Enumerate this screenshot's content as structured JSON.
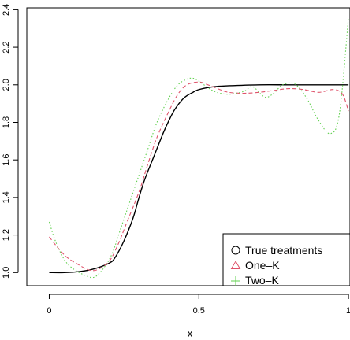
{
  "chart_data": {
    "type": "line",
    "title": "",
    "xlabel": "x",
    "ylabel": "",
    "xlim": [
      -0.075,
      1.005
    ],
    "ylim": [
      0.93,
      2.41
    ],
    "xticks": [
      0,
      0.5,
      1
    ],
    "xtick_labels": [
      "0",
      "0.5",
      "1"
    ],
    "yticks": [
      1.0,
      1.2,
      1.4,
      1.6,
      1.8,
      2.0,
      2.2,
      2.4
    ],
    "ytick_labels": [
      "1.0",
      "1.2",
      "1.4",
      "1.6",
      "1.8",
      "2.0",
      "2.2",
      "2.4"
    ],
    "grid": false,
    "legend_position": "bottom-right",
    "series": [
      {
        "name": "True treatments",
        "color": "#000000",
        "dash": "solid",
        "marker": "circle",
        "x": [
          0,
          0.05,
          0.1,
          0.15,
          0.2,
          0.22,
          0.25,
          0.28,
          0.3,
          0.32,
          0.35,
          0.38,
          0.4,
          0.42,
          0.45,
          0.48,
          0.5,
          0.55,
          0.6,
          0.7,
          0.8,
          0.9,
          1.0
        ],
        "y": [
          1.0,
          1.0,
          1.005,
          1.02,
          1.05,
          1.08,
          1.17,
          1.29,
          1.4,
          1.5,
          1.62,
          1.74,
          1.81,
          1.87,
          1.93,
          1.96,
          1.975,
          1.99,
          1.995,
          2.0,
          2.0,
          2.0,
          2.0
        ]
      },
      {
        "name": "One–K",
        "color": "#df536b",
        "dash": "dashed",
        "marker": "triangle",
        "x": [
          0,
          0.03,
          0.06,
          0.1,
          0.13,
          0.16,
          0.2,
          0.23,
          0.26,
          0.3,
          0.33,
          0.36,
          0.4,
          0.43,
          0.46,
          0.5,
          0.53,
          0.57,
          0.6,
          0.65,
          0.7,
          0.75,
          0.8,
          0.85,
          0.9,
          0.95,
          0.98,
          1.0
        ],
        "y": [
          1.19,
          1.13,
          1.08,
          1.04,
          1.015,
          1.015,
          1.06,
          1.15,
          1.27,
          1.43,
          1.58,
          1.72,
          1.86,
          1.95,
          2.0,
          2.015,
          2.0,
          1.975,
          1.96,
          1.955,
          1.96,
          1.97,
          1.98,
          1.975,
          1.96,
          1.975,
          1.95,
          1.86
        ]
      },
      {
        "name": "Two–K",
        "color": "#61d04f",
        "dash": "dotted",
        "marker": "plus",
        "x": [
          0,
          0.02,
          0.05,
          0.08,
          0.12,
          0.15,
          0.18,
          0.21,
          0.24,
          0.27,
          0.3,
          0.33,
          0.36,
          0.4,
          0.43,
          0.46,
          0.48,
          0.5,
          0.53,
          0.56,
          0.6,
          0.65,
          0.68,
          0.72,
          0.75,
          0.78,
          0.82,
          0.86,
          0.9,
          0.94,
          0.97,
          1.0
        ],
        "y": [
          1.27,
          1.17,
          1.07,
          1.02,
          0.985,
          0.975,
          1.02,
          1.1,
          1.24,
          1.38,
          1.52,
          1.66,
          1.8,
          1.93,
          2.0,
          2.03,
          2.035,
          2.02,
          1.985,
          1.96,
          1.95,
          1.965,
          1.99,
          1.935,
          1.955,
          2.0,
          2.005,
          1.93,
          1.81,
          1.74,
          1.85,
          2.36
        ]
      }
    ]
  }
}
